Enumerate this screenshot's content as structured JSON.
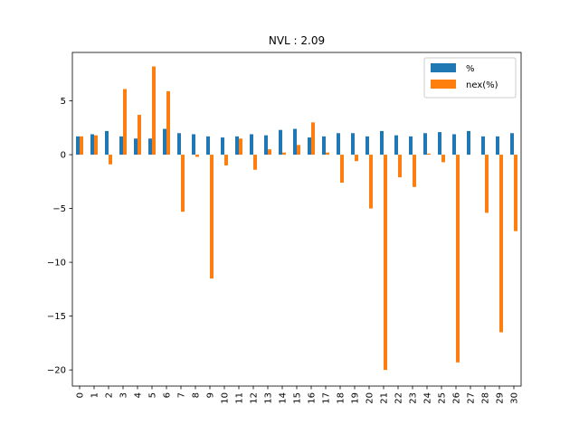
{
  "chart_data": {
    "type": "bar",
    "title": "NVL : 2.09",
    "xlabel": "",
    "ylabel": "",
    "categories": [
      "0",
      "1",
      "2",
      "3",
      "4",
      "5",
      "6",
      "7",
      "8",
      "9",
      "10",
      "11",
      "12",
      "13",
      "14",
      "15",
      "16",
      "17",
      "18",
      "19",
      "20",
      "21",
      "22",
      "23",
      "24",
      "25",
      "26",
      "27",
      "28",
      "29",
      "30"
    ],
    "series": [
      {
        "name": "%",
        "color": "#1f77b4",
        "values": [
          1.7,
          1.9,
          2.2,
          1.7,
          1.5,
          1.5,
          2.4,
          2.0,
          1.9,
          1.7,
          1.6,
          1.7,
          1.9,
          1.8,
          2.3,
          2.4,
          1.6,
          1.7,
          2.0,
          2.0,
          1.7,
          2.2,
          1.8,
          1.7,
          2.0,
          2.1,
          1.9,
          2.2,
          1.7,
          1.7,
          2.0
        ]
      },
      {
        "name": "nex(%)",
        "color": "#ff7f0e",
        "values": [
          1.7,
          1.8,
          -0.9,
          6.1,
          3.7,
          8.2,
          5.9,
          -5.3,
          -0.2,
          -11.5,
          -1.0,
          1.5,
          -1.4,
          0.5,
          0.2,
          0.9,
          3.0,
          0.2,
          -2.6,
          -0.6,
          -5.0,
          -20.0,
          -2.1,
          -3.0,
          0.1,
          -0.7,
          -19.3,
          0.0,
          -5.4,
          -16.5,
          -7.1
        ]
      }
    ],
    "ylim": [
      -21.5,
      9.5
    ],
    "yticks": [
      5,
      0,
      -5,
      -10,
      -15,
      -20
    ],
    "ytick_labels": [
      "5",
      "0",
      "−5",
      "−10",
      "−15",
      "−20"
    ],
    "grid": false,
    "legend": "upper right"
  }
}
